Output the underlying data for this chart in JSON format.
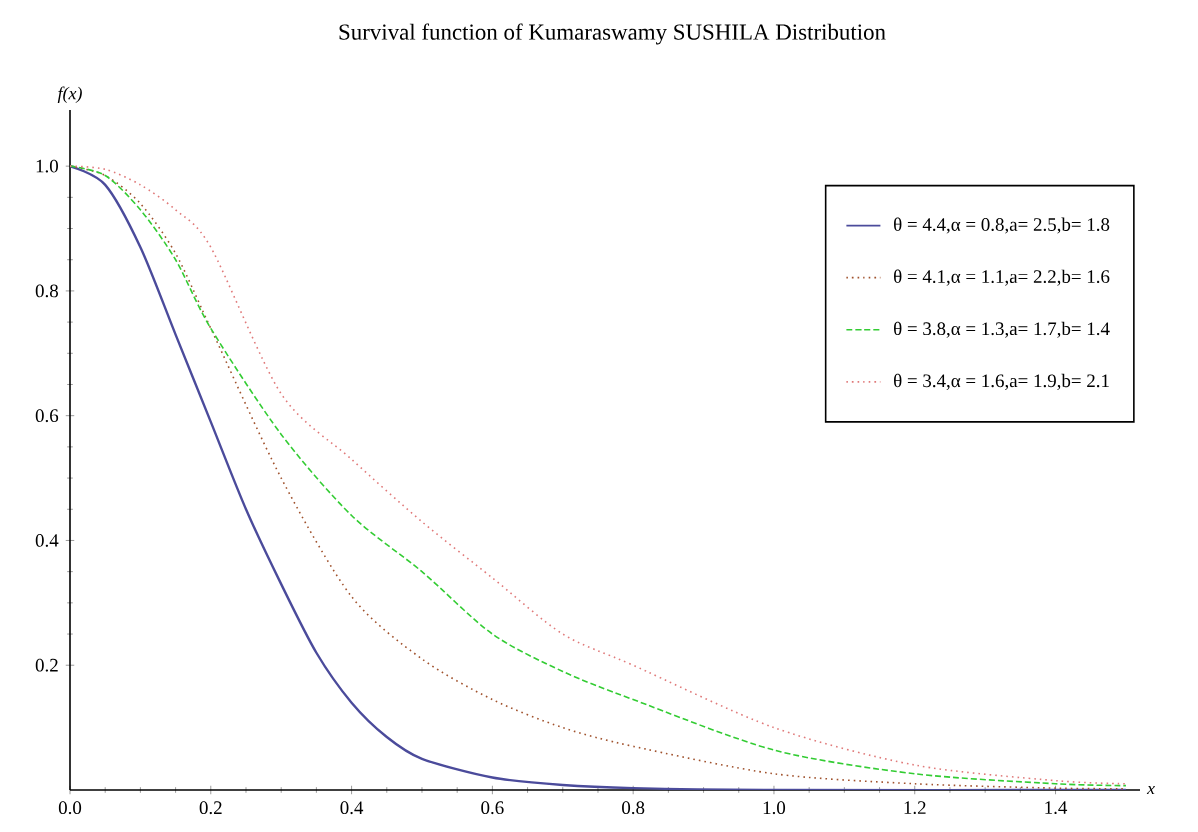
{
  "chart_data": {
    "type": "line",
    "title": "Survival function of Kumaraswamy SUSHILA Distribution",
    "xlabel": "x",
    "ylabel": "f(x)",
    "xlim": [
      0,
      1.52
    ],
    "ylim": [
      0,
      1.09
    ],
    "xticks": [
      {
        "value": 0,
        "label": "0.0"
      },
      {
        "value": 0.2,
        "label": "0.2"
      },
      {
        "value": 0.4,
        "label": "0.4"
      },
      {
        "value": 0.6,
        "label": "0.6"
      },
      {
        "value": 0.8,
        "label": "0.8"
      },
      {
        "value": 1.0,
        "label": "1.0"
      },
      {
        "value": 1.2,
        "label": "1.2"
      },
      {
        "value": 1.4,
        "label": "1.4"
      }
    ],
    "yticks": [
      {
        "value": 0.2,
        "label": "0.2"
      },
      {
        "value": 0.4,
        "label": "0.4"
      },
      {
        "value": 0.6,
        "label": "0.6"
      },
      {
        "value": 0.8,
        "label": "0.8"
      },
      {
        "value": 1.0,
        "label": "1.0"
      }
    ],
    "legend": "top right",
    "grid": false,
    "marker": "none",
    "series": [
      {
        "name": "θ = 4.4,α = 0.8,a= 2.5,b= 1.8",
        "color": "#4b4b9b",
        "line_style": "solid",
        "x": [
          0,
          0.05,
          0.1,
          0.15,
          0.2,
          0.25,
          0.3,
          0.35,
          0.4,
          0.45,
          0.5,
          0.6,
          0.7,
          0.8,
          1.0,
          1.5
        ],
        "values": [
          1.0,
          0.97,
          0.87,
          0.73,
          0.59,
          0.45,
          0.33,
          0.22,
          0.14,
          0.085,
          0.05,
          0.02,
          0.008,
          0.003,
          0,
          0
        ]
      },
      {
        "name": "θ = 4.1,α = 1.1,a= 2.2,b= 1.6",
        "color": "#a0522d",
        "line_style": "dotted",
        "x": [
          0,
          0.05,
          0.1,
          0.15,
          0.2,
          0.3,
          0.4,
          0.5,
          0.6,
          0.7,
          0.8,
          1.0,
          1.2,
          1.4,
          1.5
        ],
        "values": [
          1.0,
          0.985,
          0.94,
          0.86,
          0.74,
          0.5,
          0.31,
          0.21,
          0.145,
          0.1,
          0.07,
          0.026,
          0.01,
          0.003,
          0.002
        ]
      },
      {
        "name": "θ = 3.8,α = 1.3,a= 1.7,b= 1.4",
        "color": "#33cc33",
        "line_style": "dashed",
        "x": [
          0,
          0.05,
          0.1,
          0.15,
          0.2,
          0.3,
          0.4,
          0.5,
          0.6,
          0.7,
          0.8,
          1.0,
          1.2,
          1.4,
          1.5
        ],
        "values": [
          1.0,
          0.985,
          0.93,
          0.85,
          0.74,
          0.57,
          0.44,
          0.35,
          0.25,
          0.19,
          0.145,
          0.064,
          0.026,
          0.01,
          0.007
        ]
      },
      {
        "name": "θ = 3.4,α = 1.6,a= 1.9,b= 2.1",
        "color": "#e07a7a",
        "line_style": "dotted",
        "x": [
          0,
          0.05,
          0.1,
          0.15,
          0.2,
          0.3,
          0.4,
          0.5,
          0.6,
          0.7,
          0.8,
          1.0,
          1.2,
          1.4,
          1.5
        ],
        "values": [
          1.0,
          0.995,
          0.97,
          0.93,
          0.87,
          0.635,
          0.53,
          0.43,
          0.34,
          0.25,
          0.2,
          0.1,
          0.04,
          0.015,
          0.01
        ]
      }
    ]
  }
}
